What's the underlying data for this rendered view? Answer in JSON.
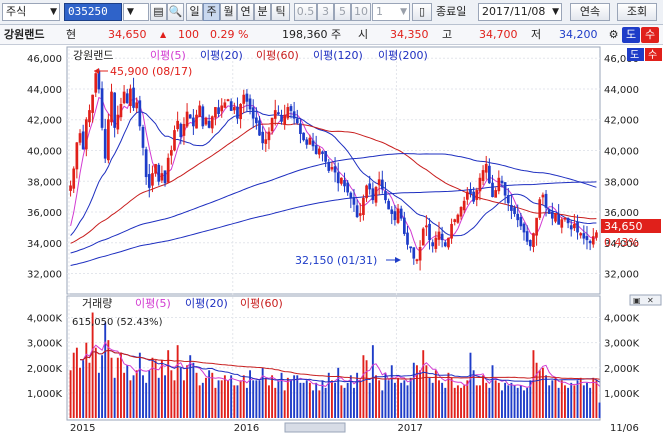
{
  "toolbar": {
    "market_select": "주식",
    "stock_code": "035250",
    "period_buttons": [
      "일",
      "주",
      "월",
      "연",
      "분",
      "틱"
    ],
    "active_period": "주",
    "number_buttons": [
      "0.5",
      "3",
      "5",
      "10",
      "1"
    ],
    "date_label": "종료일",
    "date_value": "2017/11/08",
    "continuous_button": "연속",
    "query_button": "조회"
  },
  "infobar": {
    "stock_name": "강원랜드",
    "cur_label": "현",
    "price": "34,650",
    "change": "100",
    "change_pct": "0.29 %",
    "volume": "198,360 주",
    "open_label": "시",
    "open": "34,350",
    "high_label": "고",
    "high": "34,700",
    "low_label": "저",
    "low": "34,200",
    "btn_do": "도",
    "btn_su": "수"
  },
  "colors": {
    "up": "#e0201b",
    "down": "#1e3cc8",
    "ma5": "#d23bd2",
    "ma20": "#1e2fc0",
    "ma60": "#c81e1e",
    "ma120": "#1e2fc0",
    "ma200": "#1e2fc0"
  },
  "chart_data": {
    "type": "candlestick",
    "legend": {
      "name": "강원랜드",
      "ma": [
        "이평(5)",
        "이평(20)",
        "이평(60)",
        "이평(120)",
        "이평(200)"
      ]
    },
    "y_ticks": [
      "46,000",
      "44,000",
      "42,000",
      "40,000",
      "38,000",
      "36,000",
      "34,000",
      "32,000"
    ],
    "ylim": [
      30800,
      46600
    ],
    "x_labels": [
      "2015",
      "2016",
      "2017"
    ],
    "annotations": {
      "high": "45,900 (08/17)",
      "low": "32,150 (01/31)"
    },
    "last_price": "34,650",
    "last_pct": "0.43%",
    "close": [
      37700,
      38800,
      40500,
      41100,
      40100,
      42000,
      42600,
      43600,
      45000,
      44000,
      41500,
      39500,
      42000,
      43800,
      41500,
      42300,
      43000,
      43800,
      43100,
      44000,
      42800,
      43100,
      41600,
      40200,
      38300,
      37600,
      38500,
      39100,
      38000,
      38500,
      37900,
      39500,
      40000,
      41300,
      41900,
      40900,
      41700,
      42500,
      42100,
      41600,
      42300,
      42900,
      41600,
      42100,
      41500,
      42200,
      42800,
      42400,
      42900,
      43100,
      43300,
      42600,
      42800,
      42100,
      43000,
      43600,
      43200,
      42700,
      42100,
      41800,
      41000,
      40500,
      40700,
      41200,
      42100,
      42600,
      42400,
      41900,
      42300,
      42800,
      42600,
      42100,
      41800,
      41100,
      40700,
      40400,
      40800,
      40300,
      39800,
      40100,
      39800,
      39300,
      38700,
      38900,
      38600,
      37900,
      38200,
      37700,
      37300,
      36900,
      36500,
      35700,
      35900,
      36900,
      37700,
      37500,
      36800,
      37600,
      38100,
      37500,
      36800,
      36200,
      35900,
      35500,
      36200,
      35600,
      34600,
      33900,
      33700,
      33000,
      32900,
      33700,
      34900,
      35100,
      34200,
      33800,
      34300,
      34700,
      34200,
      33800,
      34300,
      35200,
      35500,
      35800,
      36300,
      36700,
      37300,
      37200,
      36700,
      37400,
      38200,
      38700,
      39100,
      37900,
      37000,
      37400,
      38200,
      37900,
      37100,
      36600,
      36100,
      35900,
      35500,
      35100,
      34700,
      34100,
      33800,
      34600,
      35600,
      36800,
      37100,
      36300,
      35900,
      35600,
      35900,
      35200,
      35500,
      35600,
      35300,
      34900,
      35200,
      34700,
      34600,
      34300,
      34200,
      34000,
      34400,
      34650
    ],
    "ma_period_labels": [
      "이평(5)",
      "이평(20)",
      "이평(60)",
      "이평(120)",
      "이평(200)"
    ],
    "volume": {
      "legend": [
        "거래량",
        "이평(5)",
        "이평(20)",
        "이평(60)"
      ],
      "info": "615,050 (52.43%)",
      "y_ticks": [
        "4,000K",
        "3,000K",
        "2,000K",
        "1,000K"
      ],
      "ylim": [
        0,
        4500
      ],
      "values": [
        1900,
        2600,
        2800,
        2000,
        2300,
        3000,
        2200,
        4200,
        2800,
        1800,
        2500,
        3800,
        3100,
        2400,
        1600,
        2400,
        2600,
        1800,
        2100,
        1500,
        1700,
        1900,
        2600,
        1700,
        1400,
        1900,
        2400,
        2300,
        1600,
        2300,
        1700,
        2700,
        1900,
        1500,
        2900,
        2000,
        1500,
        2100,
        2500,
        2200,
        1800,
        1300,
        1400,
        1600,
        1900,
        1800,
        1200,
        1500,
        1500,
        1700,
        1500,
        1700,
        1300,
        1300,
        1500,
        1700,
        1200,
        1900,
        1500,
        1500,
        1500,
        2000,
        1600,
        1300,
        1700,
        1200,
        1500,
        1800,
        1100,
        1600,
        1500,
        1700,
        1700,
        1400,
        1400,
        1500,
        1400,
        1100,
        1400,
        1100,
        1500,
        1200,
        1800,
        1500,
        1400,
        2000,
        1300,
        1200,
        1400,
        1700,
        1200,
        1800,
        1500,
        2500,
        2300,
        1400,
        2900,
        1700,
        1500,
        1100,
        1800,
        1500,
        2100,
        1400,
        1600,
        1400,
        1500,
        1300,
        1600,
        2200,
        2100,
        1900,
        2700,
        2100,
        1600,
        1400,
        1900,
        1500,
        1400,
        1200,
        1800,
        1600,
        1200,
        1300,
        1200,
        1300,
        1500,
        2600,
        1900,
        1300,
        1300,
        1700,
        1400,
        1200,
        2100,
        1500,
        1400,
        1100,
        1400,
        1300,
        1400,
        1300,
        1200,
        1300,
        1100,
        1200,
        1500,
        2700,
        2200,
        1900,
        2000,
        1700,
        1300,
        1500,
        1600,
        1200,
        1500,
        1300,
        1200,
        1400,
        1300,
        1500,
        1600,
        1300,
        1400,
        1200,
        1600,
        1500,
        615
      ]
    },
    "x_axis_right": "11/06",
    "top_right_buttons": [
      "도",
      "수"
    ]
  }
}
